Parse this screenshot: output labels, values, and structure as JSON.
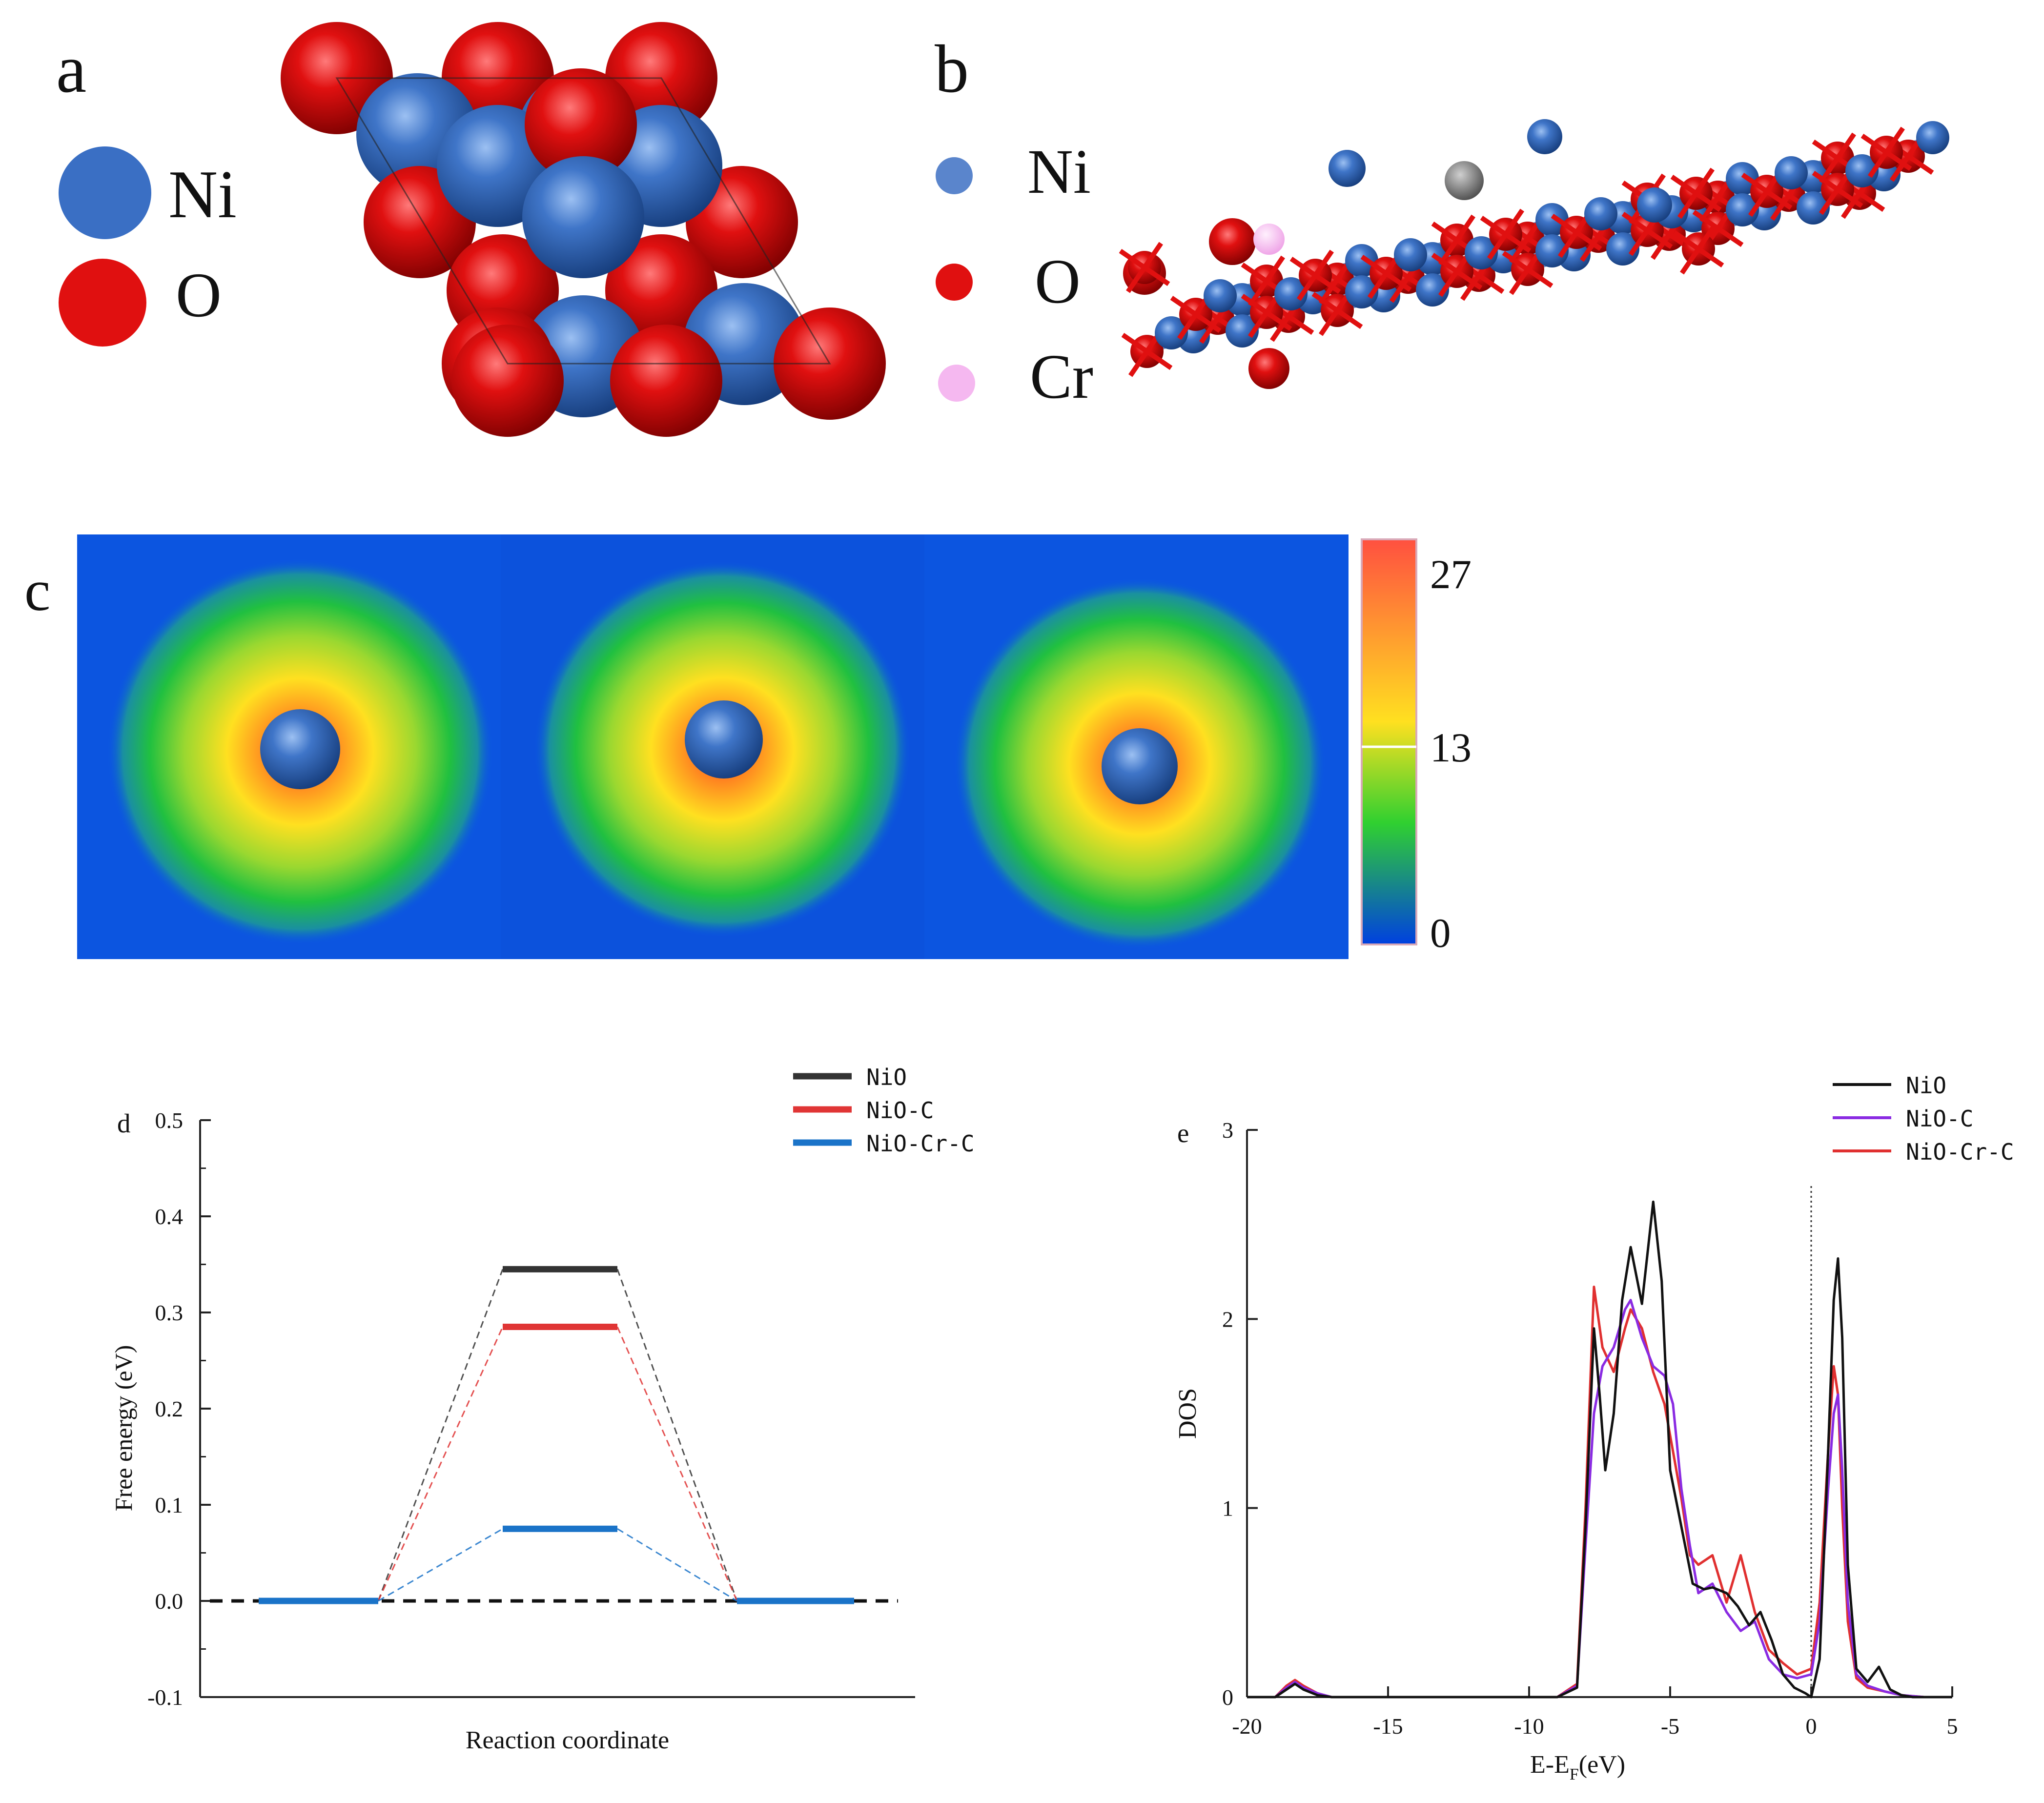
{
  "figure": {
    "panel_labels": {
      "a": "a",
      "b": "b",
      "c": "c",
      "d": "d",
      "e": "e"
    }
  },
  "panel_a": {
    "legend": [
      {
        "label": "Ni",
        "color": "#3a6fc4"
      },
      {
        "label": "O",
        "color": "#e01010"
      }
    ]
  },
  "panel_b": {
    "legend": [
      {
        "label": "Ni",
        "color": "#5a85cc"
      },
      {
        "label": "O",
        "color": "#e01010"
      },
      {
        "label": "Cr",
        "color": "#f5b8f0"
      }
    ]
  },
  "panel_c": {
    "colorbar_ticks": [
      "27",
      "13",
      "0"
    ],
    "colorbar_stops": [
      "#ff5040",
      "#ffe020",
      "#30d030",
      "#0040e0"
    ]
  },
  "chart_data": [
    {
      "panel": "d",
      "type": "line",
      "xlabel": "Reaction coordinate",
      "ylabel": "Free energy (eV)",
      "ylim": [
        -0.1,
        0.5
      ],
      "yticks": [
        "-0.1",
        "0.0",
        "0.1",
        "0.2",
        "0.3",
        "0.4",
        "0.5"
      ],
      "legend_position": "top-right",
      "reference_level": 0.0,
      "series": [
        {
          "name": "NiO",
          "color": "#333333",
          "levels": [
            0.0,
            0.345,
            0.0
          ]
        },
        {
          "name": "NiO-C",
          "color": "#e03535",
          "levels": [
            0.0,
            0.285,
            0.0
          ]
        },
        {
          "name": "NiO-Cr-C",
          "color": "#1a73c8",
          "levels": [
            0.0,
            0.075,
            0.0
          ]
        }
      ]
    },
    {
      "panel": "e",
      "type": "line",
      "xlabel": "E-E",
      "xlabel_sub": "F",
      "xlabel_suffix": "(eV)",
      "ylabel": "DOS",
      "xlim": [
        -20,
        5
      ],
      "ylim": [
        0,
        3
      ],
      "xticks": [
        "-20",
        "-15",
        "-10",
        "-5",
        "0",
        "5"
      ],
      "yticks": [
        "0",
        "1",
        "2",
        "3"
      ],
      "legend_position": "top-right",
      "fermi_level": 0,
      "series": [
        {
          "name": "NiO",
          "color": "#111111",
          "x": [
            -20,
            -19,
            -18.6,
            -18.3,
            -18.0,
            -17.5,
            -17.0,
            -9.0,
            -8.3,
            -8.0,
            -7.7,
            -7.5,
            -7.3,
            -7.0,
            -6.7,
            -6.4,
            -6.0,
            -5.6,
            -5.3,
            -5.0,
            -4.6,
            -4.2,
            -3.8,
            -3.5,
            -3.0,
            -2.6,
            -2.2,
            -1.8,
            -1.4,
            -1.0,
            -0.6,
            -0.2,
            0.0,
            0.3,
            0.6,
            0.8,
            0.95,
            1.1,
            1.3,
            1.6,
            2.0,
            2.4,
            2.8,
            3.2,
            3.6,
            4.2,
            5.0
          ],
          "y": [
            0,
            0,
            0.04,
            0.07,
            0.04,
            0.01,
            0,
            0,
            0.05,
            0.9,
            1.95,
            1.6,
            1.2,
            1.5,
            2.1,
            2.38,
            2.08,
            2.62,
            2.2,
            1.2,
            0.9,
            0.6,
            0.57,
            0.58,
            0.55,
            0.48,
            0.38,
            0.45,
            0.3,
            0.12,
            0.05,
            0.02,
            0,
            0.2,
            1.3,
            2.1,
            2.32,
            1.9,
            0.7,
            0.15,
            0.08,
            0.16,
            0.04,
            0.01,
            0.0,
            0.0,
            0.0
          ]
        },
        {
          "name": "NiO-C",
          "color": "#8a2be2",
          "x": [
            -20,
            -19,
            -18.6,
            -18.3,
            -18.0,
            -17.5,
            -17.0,
            -9.0,
            -8.3,
            -8.0,
            -7.7,
            -7.4,
            -7.0,
            -6.6,
            -6.4,
            -6.0,
            -5.6,
            -5.2,
            -4.9,
            -4.6,
            -4.3,
            -4.0,
            -3.5,
            -3.0,
            -2.5,
            -2.0,
            -1.5,
            -1.0,
            -0.5,
            0.0,
            0.3,
            0.6,
            0.8,
            0.95,
            1.1,
            1.3,
            1.6,
            2.0,
            2.6,
            3.2,
            4.0,
            5.0
          ],
          "y": [
            0,
            0,
            0.05,
            0.08,
            0.05,
            0.02,
            0,
            0,
            0.06,
            0.8,
            1.5,
            1.75,
            1.85,
            2.05,
            2.1,
            1.9,
            1.75,
            1.7,
            1.55,
            1.1,
            0.8,
            0.55,
            0.6,
            0.45,
            0.35,
            0.4,
            0.2,
            0.12,
            0.1,
            0.12,
            0.4,
            1.1,
            1.5,
            1.6,
            1.2,
            0.5,
            0.12,
            0.06,
            0.03,
            0.01,
            0.0,
            0.0
          ]
        },
        {
          "name": "NiO-Cr-C",
          "color": "#e03030",
          "x": [
            -20,
            -19,
            -18.6,
            -18.3,
            -18.0,
            -17.5,
            -17.0,
            -9.0,
            -8.3,
            -8.0,
            -7.7,
            -7.4,
            -7.0,
            -6.6,
            -6.4,
            -6.0,
            -5.6,
            -5.2,
            -4.9,
            -4.6,
            -4.3,
            -4.0,
            -3.5,
            -3.0,
            -2.5,
            -2.0,
            -1.5,
            -1.0,
            -0.5,
            0.0,
            0.3,
            0.6,
            0.8,
            0.95,
            1.1,
            1.3,
            1.6,
            2.0,
            2.6,
            3.2,
            4.0,
            5.0
          ],
          "y": [
            0,
            0,
            0.06,
            0.09,
            0.06,
            0.02,
            0,
            0,
            0.07,
            1.0,
            2.17,
            1.85,
            1.72,
            1.95,
            2.05,
            1.95,
            1.72,
            1.55,
            1.3,
            1.05,
            0.75,
            0.7,
            0.75,
            0.5,
            0.75,
            0.45,
            0.25,
            0.18,
            0.12,
            0.15,
            0.5,
            1.3,
            1.75,
            1.6,
            1.0,
            0.4,
            0.1,
            0.05,
            0.03,
            0.01,
            0.0,
            0.0
          ]
        }
      ]
    }
  ]
}
